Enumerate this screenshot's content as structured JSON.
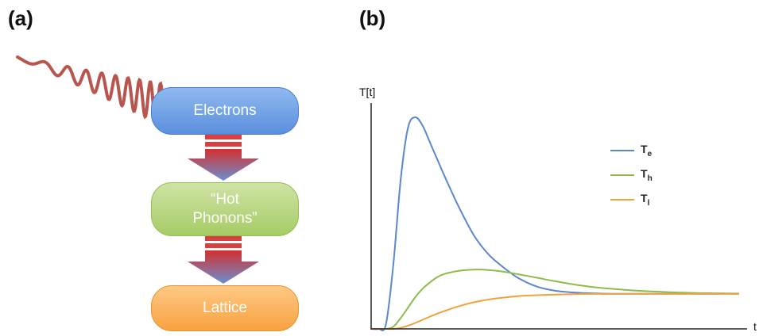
{
  "panel_a": {
    "label": "(a)",
    "nodes": {
      "electrons": "Electrons",
      "hot_phonons_line1": "“Hot",
      "hot_phonons_line2": "Phonons”",
      "lattice": "Lattice"
    },
    "colors": {
      "electrons": "#6a9be3",
      "hot_phonons": "#b2d47a",
      "lattice": "#f9ad55",
      "laser_wave": "#b8554f",
      "arrow_top": "#d33030",
      "arrow_bottom": "#6b8fd0"
    }
  },
  "panel_b": {
    "label": "(b)"
  },
  "chart_data": {
    "type": "line",
    "ylabel": "T[t]",
    "xlabel": "t",
    "x": [
      0,
      0.02,
      0.04,
      0.06,
      0.08,
      0.1,
      0.12,
      0.14,
      0.16,
      0.18,
      0.2,
      0.24,
      0.28,
      0.32,
      0.36,
      0.4,
      0.45,
      0.5,
      0.55,
      0.6,
      0.65,
      0.7,
      0.75,
      0.8,
      0.85,
      0.9,
      0.95,
      1.0
    ],
    "series": [
      {
        "name": "e",
        "color": "#5b87cf",
        "values": [
          0,
          0,
          0.02,
          0.3,
          0.7,
          0.95,
          1.0,
          0.96,
          0.88,
          0.8,
          0.72,
          0.57,
          0.44,
          0.35,
          0.29,
          0.24,
          0.2,
          0.18,
          0.172,
          0.168,
          0.166,
          0.166,
          0.166,
          0.166,
          0.166,
          0.166,
          0.166,
          0.166
        ]
      },
      {
        "name": "h",
        "color": "#8cbd4b",
        "values": [
          0,
          0,
          0,
          0.01,
          0.05,
          0.1,
          0.15,
          0.19,
          0.22,
          0.245,
          0.26,
          0.275,
          0.28,
          0.278,
          0.27,
          0.258,
          0.242,
          0.225,
          0.21,
          0.198,
          0.19,
          0.183,
          0.178,
          0.174,
          0.171,
          0.169,
          0.168,
          0.167
        ]
      },
      {
        "name": "l",
        "color": "#f2a23c",
        "values": [
          0,
          0,
          0,
          0,
          0.005,
          0.015,
          0.028,
          0.043,
          0.058,
          0.072,
          0.085,
          0.108,
          0.126,
          0.139,
          0.148,
          0.155,
          0.159,
          0.162,
          0.164,
          0.165,
          0.165,
          0.166,
          0.166,
          0.166,
          0.166,
          0.166,
          0.166,
          0.166
        ]
      }
    ],
    "legend": [
      "e",
      "h",
      "l"
    ],
    "legend_position": "top-right",
    "grid": false
  }
}
